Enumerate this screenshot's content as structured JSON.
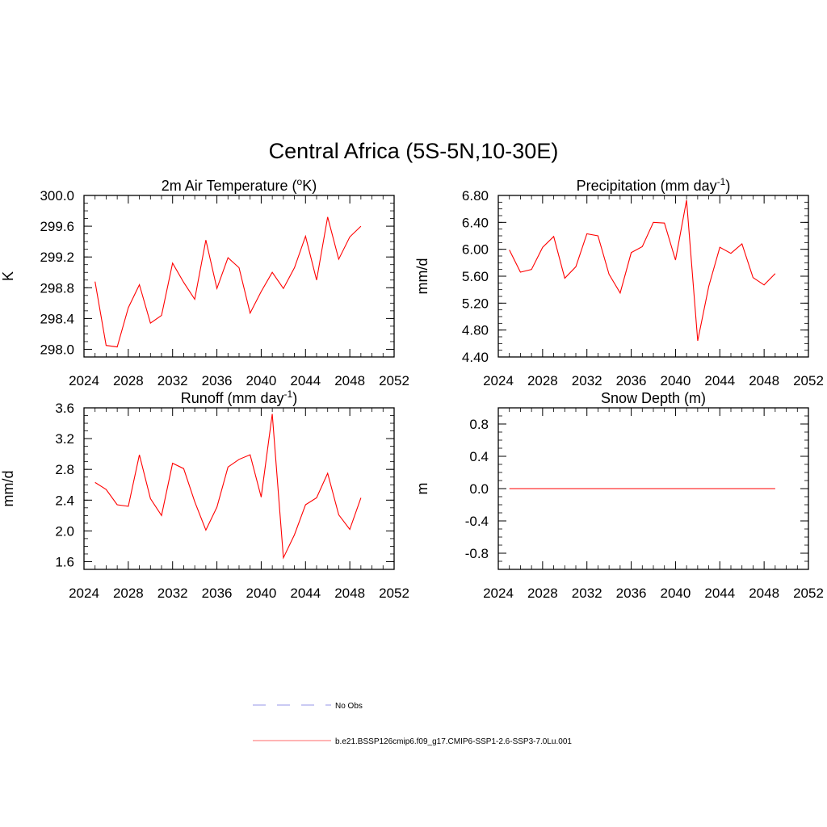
{
  "figure": {
    "title": "Central Africa (5S-5N,10-30E)"
  },
  "chart_data": [
    {
      "type": "line",
      "title": "2m Air Temperature (",
      "title_super": "o",
      "title_after": "K)",
      "ylabel": "K",
      "xlim": [
        2024,
        2052
      ],
      "ylim": [
        297.9,
        300.0
      ],
      "xticks": [
        2024,
        2028,
        2032,
        2036,
        2040,
        2044,
        2048,
        2052
      ],
      "yticks": [
        "298.0",
        "298.4",
        "298.8",
        "299.2",
        "299.6",
        "300.0"
      ],
      "x": [
        2025,
        2026,
        2027,
        2028,
        2029,
        2030,
        2031,
        2032,
        2033,
        2034,
        2035,
        2036,
        2037,
        2038,
        2039,
        2040,
        2041,
        2042,
        2043,
        2044,
        2045,
        2046,
        2047,
        2048,
        2049
      ],
      "y": [
        298.88,
        298.05,
        298.03,
        298.54,
        298.84,
        298.34,
        298.44,
        299.12,
        298.87,
        298.65,
        299.42,
        298.79,
        299.19,
        299.06,
        298.47,
        298.75,
        299.0,
        298.79,
        299.06,
        299.47,
        298.9,
        299.72,
        299.17,
        299.46,
        299.6
      ],
      "color": "#ff0000"
    },
    {
      "type": "line",
      "title": "Precipitation (mm day",
      "title_super": "-1",
      "title_after": ")",
      "ylabel": "mm/d",
      "xlim": [
        2024,
        2052
      ],
      "ylim": [
        4.4,
        6.8
      ],
      "xticks": [
        2024,
        2028,
        2032,
        2036,
        2040,
        2044,
        2048,
        2052
      ],
      "yticks": [
        "4.40",
        "4.80",
        "5.20",
        "5.60",
        "6.00",
        "6.40",
        "6.80"
      ],
      "x": [
        2025,
        2026,
        2027,
        2028,
        2029,
        2030,
        2031,
        2032,
        2033,
        2034,
        2035,
        2036,
        2037,
        2038,
        2039,
        2040,
        2041,
        2042,
        2043,
        2044,
        2045,
        2046,
        2047,
        2048,
        2049
      ],
      "y": [
        5.99,
        5.66,
        5.7,
        6.03,
        6.19,
        5.57,
        5.74,
        6.23,
        6.2,
        5.63,
        5.35,
        5.95,
        6.04,
        6.4,
        6.39,
        5.84,
        6.73,
        4.64,
        5.45,
        6.03,
        5.94,
        6.08,
        5.58,
        5.47,
        5.64
      ],
      "color": "#ff0000"
    },
    {
      "type": "line",
      "title": "Runoff (mm day",
      "title_super": "-1",
      "title_after": ")",
      "ylabel": "mm/d",
      "xlim": [
        2024,
        2052
      ],
      "ylim": [
        1.5,
        3.6
      ],
      "xticks": [
        2024,
        2028,
        2032,
        2036,
        2040,
        2044,
        2048,
        2052
      ],
      "yticks": [
        "1.6",
        "2.0",
        "2.4",
        "2.8",
        "3.2",
        "3.6"
      ],
      "x": [
        2025,
        2026,
        2027,
        2028,
        2029,
        2030,
        2031,
        2032,
        2033,
        2034,
        2035,
        2036,
        2037,
        2038,
        2039,
        2040,
        2041,
        2042,
        2043,
        2044,
        2045,
        2046,
        2047,
        2048,
        2049
      ],
      "y": [
        2.63,
        2.54,
        2.34,
        2.32,
        2.99,
        2.42,
        2.2,
        2.88,
        2.81,
        2.38,
        2.01,
        2.31,
        2.83,
        2.93,
        2.99,
        2.44,
        3.52,
        1.65,
        1.95,
        2.34,
        2.43,
        2.75,
        2.21,
        2.02,
        2.43
      ],
      "color": "#ff0000"
    },
    {
      "type": "line",
      "title": "Snow Depth (m)",
      "title_super": "",
      "title_after": "",
      "ylabel": "m",
      "xlim": [
        2024,
        2052
      ],
      "ylim": [
        -1.0,
        1.0
      ],
      "xticks": [
        2024,
        2028,
        2032,
        2036,
        2040,
        2044,
        2048,
        2052
      ],
      "yticks": [
        "-0.8",
        "-0.4",
        "0.0",
        "0.4",
        "0.8"
      ],
      "x": [
        2025,
        2026,
        2027,
        2028,
        2029,
        2030,
        2031,
        2032,
        2033,
        2034,
        2035,
        2036,
        2037,
        2038,
        2039,
        2040,
        2041,
        2042,
        2043,
        2044,
        2045,
        2046,
        2047,
        2048,
        2049
      ],
      "y": [
        0,
        0,
        0,
        0,
        0,
        0,
        0,
        0,
        0,
        0,
        0,
        0,
        0,
        0,
        0,
        0,
        0,
        0,
        0,
        0,
        0,
        0,
        0,
        0,
        0
      ],
      "color": "#ff0000"
    }
  ],
  "legend": {
    "items": [
      {
        "label": "No Obs",
        "color": "#aaaaee",
        "style": "dashed"
      },
      {
        "label": "b.e21.BSSP126cmip6.f09_g17.CMIP6-SSP1-2.6-SSP3-7.0Lu.001",
        "color": "#ff8888",
        "style": "solid"
      }
    ]
  }
}
